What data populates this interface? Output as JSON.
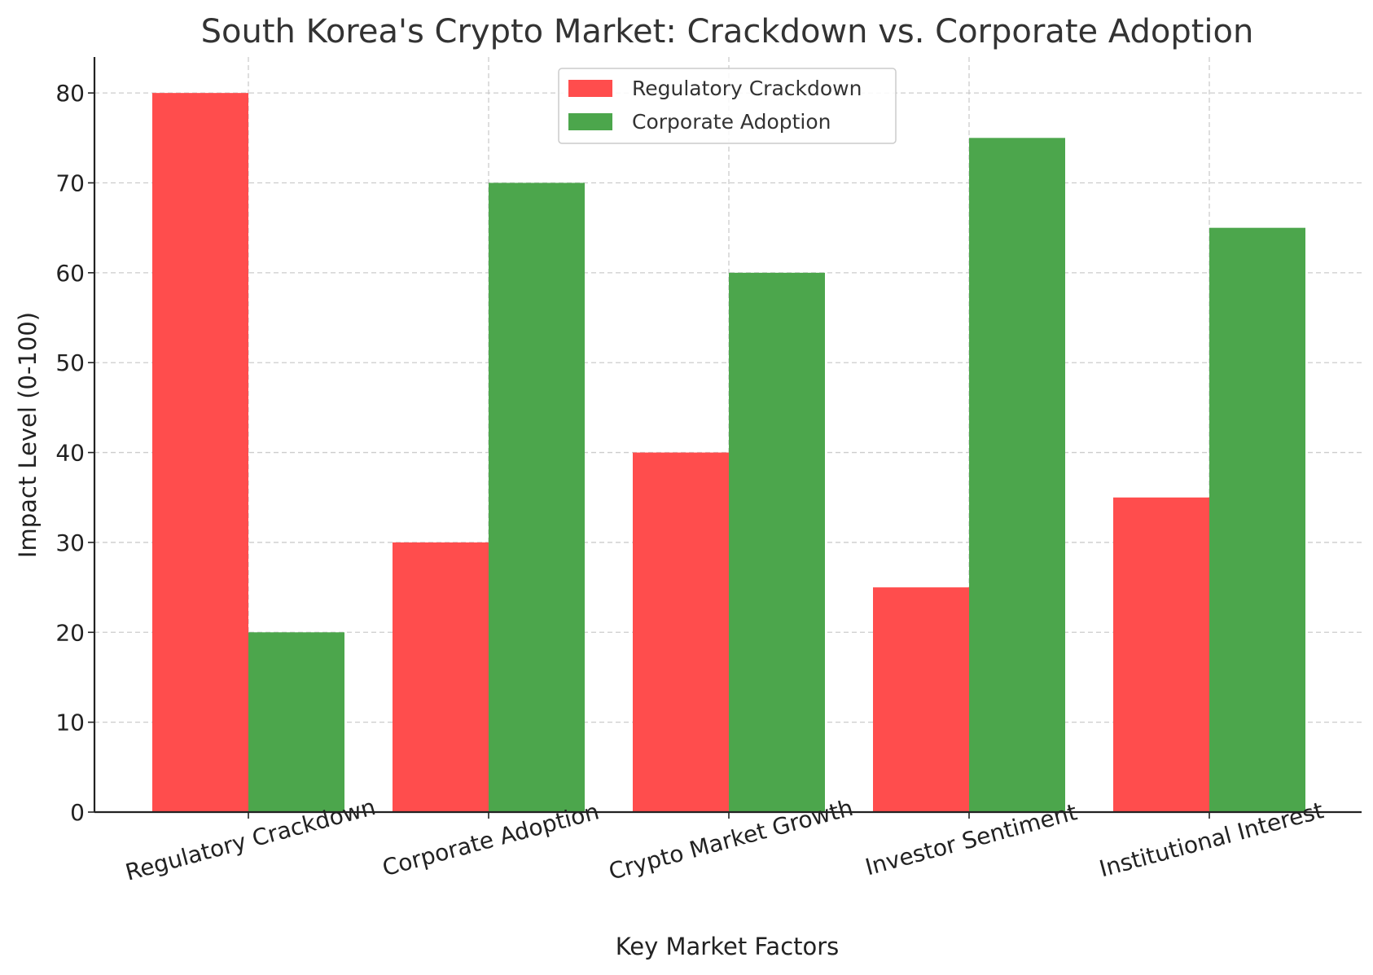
{
  "chart_data": {
    "type": "bar",
    "title": "South Korea's Crypto Market: Crackdown vs. Corporate Adoption",
    "xlabel": "Key Market Factors",
    "ylabel": "Impact Level (0-100)",
    "categories": [
      "Regulatory Crackdown",
      "Corporate Adoption",
      "Crypto Market Growth",
      "Investor Sentiment",
      "Institutional Interest"
    ],
    "series": [
      {
        "name": "Regulatory Crackdown",
        "color": "#ff4d4d",
        "values": [
          80,
          30,
          40,
          25,
          35
        ]
      },
      {
        "name": "Corporate Adoption",
        "color": "#4ca64c",
        "values": [
          20,
          70,
          60,
          75,
          65
        ]
      }
    ],
    "ylim": [
      0,
      84
    ],
    "yticks": [
      0,
      10,
      20,
      30,
      40,
      50,
      60,
      70,
      80
    ],
    "grid": true,
    "legend_position": "top-center"
  }
}
